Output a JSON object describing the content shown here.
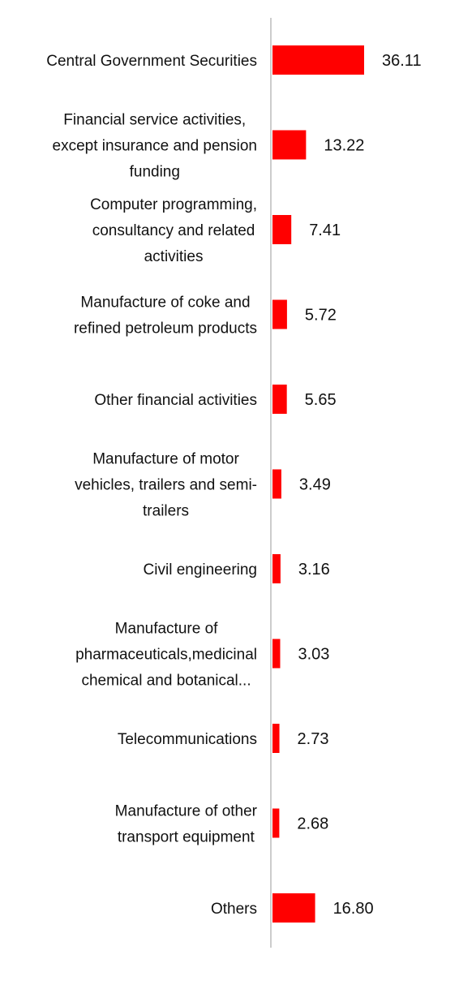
{
  "chart_data": {
    "type": "bar",
    "orientation": "horizontal",
    "categories": [
      [
        "Central Government Securities"
      ],
      [
        "Financial service activities,",
        "except insurance and pension",
        "funding"
      ],
      [
        "Computer programming,",
        "consultancy and related",
        "activities"
      ],
      [
        "Manufacture of coke and",
        "refined petroleum products"
      ],
      [
        "Other financial activities"
      ],
      [
        "Manufacture of motor",
        "vehicles, trailers and semi-",
        "trailers"
      ],
      [
        "Civil engineering"
      ],
      [
        "Manufacture of",
        "pharmaceuticals,medicinal",
        "chemical and botanical..."
      ],
      [
        "Telecommunications"
      ],
      [
        "Manufacture of other",
        "transport equipment"
      ],
      [
        "Others"
      ]
    ],
    "values": [
      36.11,
      13.22,
      7.41,
      5.72,
      5.65,
      3.49,
      3.16,
      3.03,
      2.73,
      2.68,
      16.8
    ],
    "value_labels": [
      "36.11",
      "13.22",
      "7.41",
      "5.72",
      "5.65",
      "3.49",
      "3.16",
      "3.03",
      "2.73",
      "2.68",
      "16.80"
    ],
    "title": "",
    "xlabel": "",
    "ylabel": "",
    "bar_color": "#ff0000",
    "axis_color": "#cccccc",
    "grid": false,
    "legend": "none"
  }
}
